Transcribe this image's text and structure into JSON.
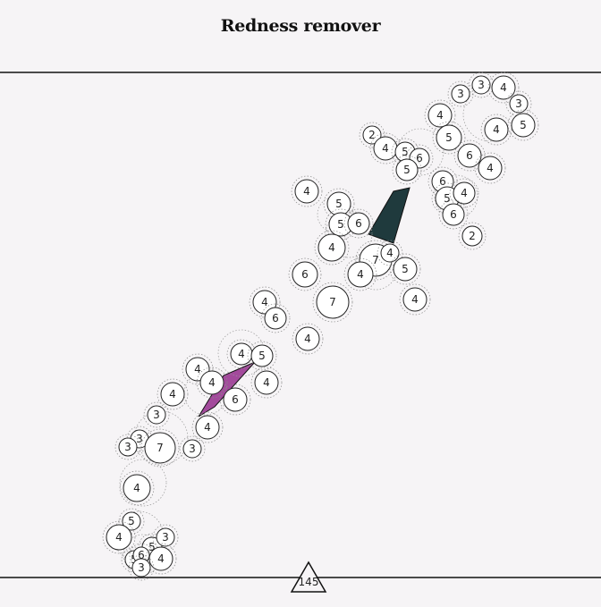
{
  "title": "Redness remover",
  "pointer": {
    "label": "145"
  },
  "colors": {
    "background": "#f6f4f6",
    "line": "#111111",
    "dark_wedge": "#1f3a3d",
    "magenta_wedge": "#a34a9c",
    "bubble_fill": "#ffffff"
  },
  "bubbles": [
    {
      "label": "3"
    },
    {
      "label": "3"
    },
    {
      "label": "4"
    },
    {
      "label": "3"
    },
    {
      "label": "5"
    },
    {
      "label": "4"
    },
    {
      "label": "4"
    },
    {
      "label": "2"
    },
    {
      "label": "4"
    },
    {
      "label": "5"
    },
    {
      "label": "6"
    },
    {
      "label": "5"
    },
    {
      "label": "5"
    },
    {
      "label": "6"
    },
    {
      "label": "4"
    },
    {
      "label": "6"
    },
    {
      "label": "5"
    },
    {
      "label": "4"
    },
    {
      "label": "6"
    },
    {
      "label": "2"
    },
    {
      "label": "4"
    },
    {
      "label": "5"
    },
    {
      "label": "5"
    },
    {
      "label": "6"
    },
    {
      "label": "4"
    },
    {
      "label": "7"
    },
    {
      "label": "4"
    },
    {
      "label": "4"
    },
    {
      "label": "5"
    },
    {
      "label": "6"
    },
    {
      "label": "4"
    },
    {
      "label": "7"
    },
    {
      "label": "4"
    },
    {
      "label": "6"
    },
    {
      "label": "4"
    },
    {
      "label": "4"
    },
    {
      "label": "5"
    },
    {
      "label": "4"
    },
    {
      "label": "4"
    },
    {
      "label": "4"
    },
    {
      "label": "6"
    },
    {
      "label": "4"
    },
    {
      "label": "3"
    },
    {
      "label": "4"
    },
    {
      "label": "3"
    },
    {
      "label": "3"
    },
    {
      "label": "7"
    },
    {
      "label": "3"
    },
    {
      "label": "4"
    },
    {
      "label": "5"
    },
    {
      "label": "4"
    },
    {
      "label": "5"
    },
    {
      "label": "3"
    },
    {
      "label": "5"
    },
    {
      "label": "6"
    },
    {
      "label": "4"
    },
    {
      "label": "3"
    }
  ]
}
